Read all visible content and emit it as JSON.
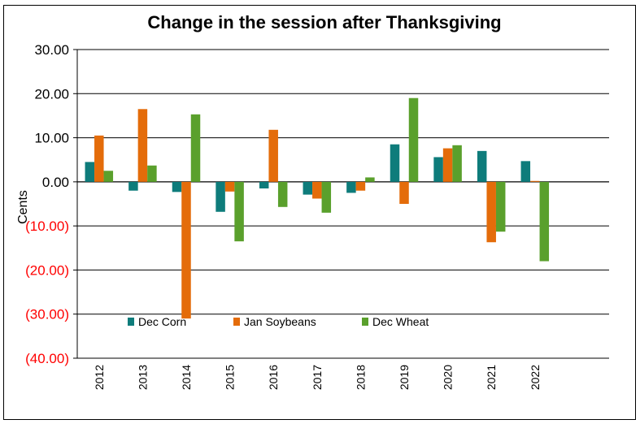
{
  "chart_data": {
    "type": "bar",
    "title": "Change in the session after Thanksgiving",
    "ylabel": "Cents",
    "xlabel": "",
    "ylim": [
      -40,
      30
    ],
    "yticks": [
      30,
      20,
      10,
      0,
      -10,
      -20,
      -30,
      -40
    ],
    "ytick_labels": [
      "30.00",
      "20.00",
      "10.00",
      "0.00",
      "(10.00)",
      "(20.00)",
      "(30.00)",
      "(40.00)"
    ],
    "negative_tick_color": "#ff0000",
    "positive_tick_color": "#000000",
    "grid": true,
    "legend_position": "lower-center-inside",
    "categories": [
      "2012",
      "2013",
      "2014",
      "2015",
      "2016",
      "2017",
      "2018",
      "2019",
      "2020",
      "2021",
      "2022"
    ],
    "series": [
      {
        "name": "Dec Corn",
        "color": "#0e7c7b",
        "values": [
          4.5,
          -2.0,
          -2.3,
          -6.8,
          -1.5,
          -2.9,
          -2.5,
          8.5,
          5.6,
          7.0,
          4.7
        ]
      },
      {
        "name": "Jan Soybeans",
        "color": "#e46c0a",
        "values": [
          10.5,
          16.5,
          -31.0,
          -2.2,
          11.8,
          -3.8,
          -2.0,
          -5.0,
          7.6,
          -13.7,
          0.2
        ]
      },
      {
        "name": "Dec Wheat",
        "color": "#5aa02c",
        "values": [
          2.5,
          3.7,
          15.3,
          -13.5,
          -5.7,
          -7.0,
          1.0,
          19.0,
          8.3,
          -11.3,
          -18.0
        ]
      }
    ]
  }
}
